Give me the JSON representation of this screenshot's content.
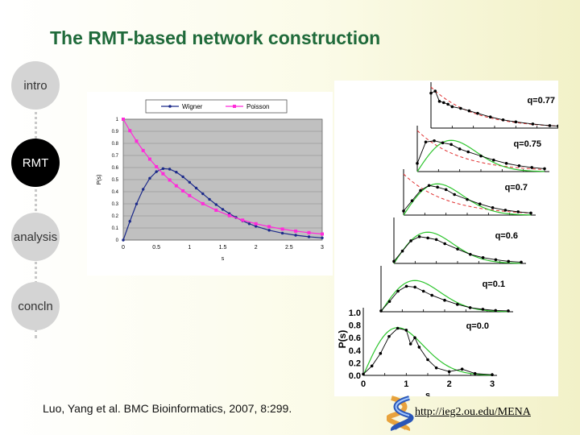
{
  "title": "The RMT-based network construction",
  "nav": [
    {
      "label": "intro",
      "active": false
    },
    {
      "label": "RMT",
      "active": true
    },
    {
      "label": "analysis",
      "active": false
    },
    {
      "label": "concln",
      "active": false
    }
  ],
  "citation": "Luo, Yang et al. BMC Bioinformatics, 2007, 8:299.",
  "url": "http://ieg2.ou.edu/MENA",
  "colors": {
    "title": "#1f6a3a",
    "wigner": "#1c2a8a",
    "poisson": "#ff2bd9",
    "plot_bg": "#c0c0c0"
  },
  "chart_data": [
    {
      "type": "line",
      "legend": [
        "Wigner",
        "Poisson"
      ],
      "xlabel": "s",
      "ylabel": "P(s)",
      "xlim": [
        0,
        3
      ],
      "ylim": [
        0,
        1
      ],
      "xticks": [
        "0",
        "0.5",
        "1",
        "1.5",
        "2",
        "2.5",
        "3"
      ],
      "yticks": [
        "0",
        "0.1",
        "0.2",
        "0.3",
        "0.4",
        "0.5",
        "0.6",
        "0.7",
        "0.8",
        "0.9",
        "1"
      ],
      "grid": true,
      "legend_position": "top",
      "series": [
        {
          "name": "Wigner",
          "x": [
            0,
            0.1,
            0.2,
            0.3,
            0.4,
            0.5,
            0.6,
            0.7,
            0.8,
            0.9,
            1.0,
            1.1,
            1.2,
            1.3,
            1.4,
            1.5,
            1.6,
            1.7,
            1.8,
            1.9,
            2.0,
            2.2,
            2.4,
            2.6,
            2.8,
            3.0
          ],
          "y": [
            0,
            0.155,
            0.299,
            0.42,
            0.511,
            0.566,
            0.591,
            0.587,
            0.562,
            0.524,
            0.478,
            0.43,
            0.383,
            0.337,
            0.294,
            0.254,
            0.219,
            0.187,
            0.159,
            0.135,
            0.114,
            0.081,
            0.057,
            0.04,
            0.027,
            0.018
          ]
        },
        {
          "name": "Poisson",
          "x": [
            0,
            0.1,
            0.2,
            0.3,
            0.4,
            0.5,
            0.6,
            0.7,
            0.8,
            0.9,
            1.0,
            1.2,
            1.4,
            1.6,
            1.8,
            2.0,
            2.2,
            2.4,
            2.6,
            2.8,
            3.0
          ],
          "y": [
            1,
            0.905,
            0.819,
            0.741,
            0.67,
            0.607,
            0.549,
            0.497,
            0.449,
            0.407,
            0.368,
            0.301,
            0.247,
            0.202,
            0.165,
            0.135,
            0.111,
            0.091,
            0.074,
            0.061,
            0.05
          ]
        }
      ]
    },
    {
      "type": "line",
      "xlabel": "s",
      "ylabel": "P(s)",
      "xlim": [
        0,
        3
      ],
      "ylim": [
        0,
        1
      ],
      "xticks": [
        "0",
        "1",
        "2",
        "3"
      ],
      "yticks": [
        "0.0",
        "0.2",
        "0.4",
        "0.6",
        "0.8",
        "1.0"
      ],
      "panels": [
        {
          "label": "q=0.77",
          "x": [
            0,
            0.1,
            0.2,
            0.3,
            0.4,
            0.5,
            0.7,
            0.9,
            1.1,
            1.4,
            1.7,
            2.0,
            2.4,
            2.8,
            3.0
          ],
          "y": [
            0.85,
            0.9,
            0.65,
            0.62,
            0.58,
            0.52,
            0.48,
            0.42,
            0.36,
            0.27,
            0.2,
            0.15,
            0.1,
            0.06,
            0.05
          ]
        },
        {
          "label": "q=0.75",
          "x": [
            0,
            0.2,
            0.4,
            0.6,
            0.8,
            1.0,
            1.2,
            1.5,
            1.8,
            2.1,
            2.4,
            2.7,
            3.0
          ],
          "y": [
            0.2,
            0.72,
            0.75,
            0.7,
            0.66,
            0.55,
            0.48,
            0.38,
            0.28,
            0.2,
            0.14,
            0.1,
            0.07
          ]
        },
        {
          "label": "q=0.7",
          "x": [
            0,
            0.2,
            0.4,
            0.6,
            0.8,
            1.0,
            1.2,
            1.5,
            1.8,
            2.1,
            2.4,
            2.7,
            3.0
          ],
          "y": [
            0.1,
            0.35,
            0.6,
            0.72,
            0.68,
            0.62,
            0.5,
            0.38,
            0.27,
            0.18,
            0.12,
            0.08,
            0.05
          ]
        },
        {
          "label": "q=0.6",
          "x": [
            0,
            0.2,
            0.4,
            0.6,
            0.8,
            1.0,
            1.2,
            1.5,
            1.8,
            2.1,
            2.4,
            2.7,
            3.0
          ],
          "y": [
            0.05,
            0.3,
            0.55,
            0.65,
            0.62,
            0.58,
            0.48,
            0.35,
            0.22,
            0.14,
            0.09,
            0.05,
            0.03
          ]
        },
        {
          "label": "q=0.1",
          "x": [
            0,
            0.2,
            0.4,
            0.6,
            0.8,
            1.0,
            1.2,
            1.5,
            1.8,
            2.1,
            2.4,
            2.7,
            3.0
          ],
          "y": [
            0.02,
            0.25,
            0.5,
            0.62,
            0.6,
            0.5,
            0.4,
            0.28,
            0.18,
            0.1,
            0.06,
            0.03,
            0.02
          ]
        },
        {
          "label": "q=0.0",
          "x": [
            0,
            0.2,
            0.4,
            0.6,
            0.8,
            1.0,
            1.1,
            1.2,
            1.3,
            1.5,
            1.7,
            2.0,
            2.3,
            2.6,
            3.0
          ],
          "y": [
            0.02,
            0.15,
            0.35,
            0.62,
            0.75,
            0.72,
            0.5,
            0.6,
            0.45,
            0.25,
            0.12,
            0.06,
            0.1,
            0.03,
            0.01
          ]
        }
      ]
    }
  ]
}
